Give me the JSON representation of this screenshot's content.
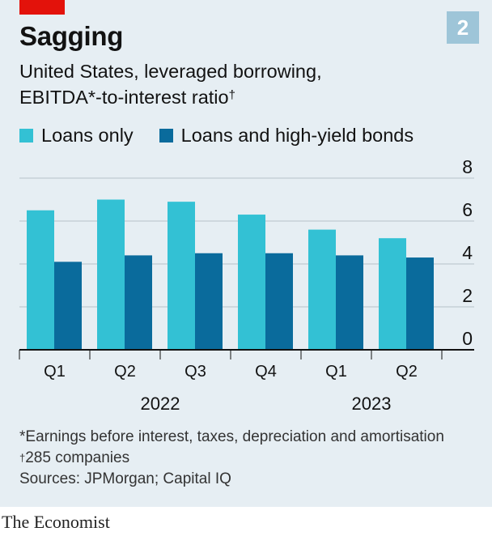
{
  "header": {
    "chart_number": "2",
    "title": "Sagging",
    "subtitle_line1": "United States, leveraged borrowing,",
    "subtitle_line2": "EBITDA*-to-interest ratio",
    "subtitle_mark": "†"
  },
  "legend": {
    "items": [
      {
        "label": "Loans only",
        "color": "#33c1d4"
      },
      {
        "label": "Loans and high-yield bonds",
        "color": "#0a6b9c"
      }
    ]
  },
  "chart_data": {
    "type": "bar",
    "categories": [
      "Q1",
      "Q2",
      "Q3",
      "Q4",
      "Q1",
      "Q2"
    ],
    "year_groups": [
      {
        "label": "2022",
        "span": [
          0,
          3
        ]
      },
      {
        "label": "2023",
        "span": [
          4,
          5
        ]
      }
    ],
    "series": [
      {
        "name": "Loans only",
        "color": "#33c1d4",
        "values": [
          6.5,
          7.0,
          6.9,
          6.3,
          5.6,
          5.2
        ]
      },
      {
        "name": "Loans and high-yield bonds",
        "color": "#0a6b9c",
        "values": [
          4.1,
          4.4,
          4.5,
          4.5,
          4.4,
          4.3
        ]
      }
    ],
    "yticks": [
      0,
      2,
      4,
      6,
      8
    ],
    "ylim": [
      0,
      8
    ],
    "title": "Sagging",
    "xlabel": "",
    "ylabel": "",
    "grid": true,
    "legend_position": "top-left"
  },
  "footnotes": {
    "note1": "*Earnings before interest, taxes, depreciation and amortisation",
    "note2_mark": "†",
    "note2": "285 companies",
    "sources": "Sources: JPMorgan; Capital IQ"
  },
  "brand": "The Economist"
}
